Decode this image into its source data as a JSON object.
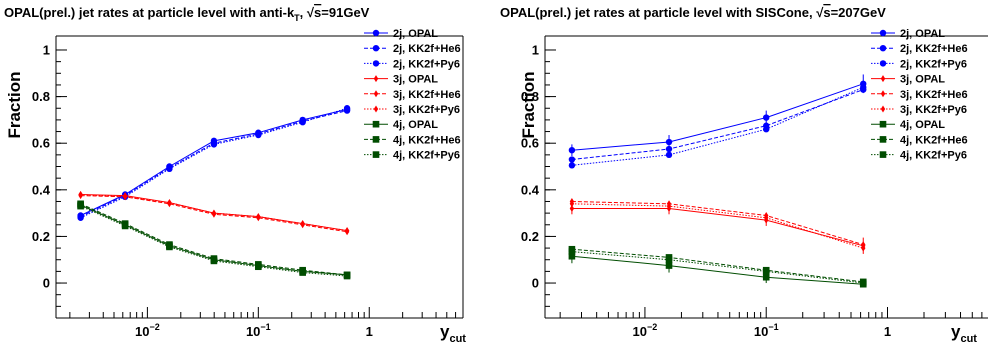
{
  "chart_data": [
    {
      "type": "line",
      "title": {
        "pre": "OPAL(prel.) jet rates at particle level with anti-k",
        "sub": "T",
        "mid": ", ",
        "sqrt": "s",
        "post": "=91GeV"
      },
      "xlabel": {
        "main": "y",
        "sub": "cut"
      },
      "ylabel": "Fraction",
      "xscale": "log",
      "xlim": [
        0.0015,
        7.0
      ],
      "ylim": [
        -0.15,
        1.06
      ],
      "yticks": [
        "0",
        "0.2",
        "0.4",
        "0.6",
        "0.8",
        "1"
      ],
      "xticks": [
        {
          "base": "10",
          "exp": "−2",
          "value": 0.01
        },
        {
          "base": "10",
          "exp": "−1",
          "value": 0.1
        },
        {
          "base": "1",
          "exp": "",
          "value": 1
        }
      ],
      "legend_position": "top-right",
      "series": [
        {
          "name": "2j, OPAL",
          "color": "#0000ff",
          "dash": "solid",
          "marker": "circle",
          "x": [
            0.0025,
            0.0063,
            0.0158,
            0.0398,
            0.1,
            0.251,
            0.631
          ],
          "y": [
            0.29,
            0.38,
            0.5,
            0.61,
            0.645,
            0.7,
            0.745
          ],
          "err": [
            0.008,
            0.008,
            0.008,
            0.008,
            0.008,
            0.008,
            0.008
          ]
        },
        {
          "name": "2j, KK2f+He6",
          "color": "#0000ff",
          "dash": "dashed",
          "marker": "circle",
          "x": [
            0.0025,
            0.0063,
            0.0158,
            0.0398,
            0.1,
            0.251,
            0.631
          ],
          "y": [
            0.285,
            0.375,
            0.495,
            0.6,
            0.64,
            0.695,
            0.74
          ]
        },
        {
          "name": "2j, KK2f+Py6",
          "color": "#0000ff",
          "dash": "dotted",
          "marker": "circle",
          "x": [
            0.0025,
            0.0063,
            0.0158,
            0.0398,
            0.1,
            0.251,
            0.631
          ],
          "y": [
            0.28,
            0.37,
            0.49,
            0.595,
            0.635,
            0.69,
            0.75
          ]
        },
        {
          "name": "3j, OPAL",
          "color": "#ff0000",
          "dash": "solid",
          "marker": "diamond",
          "x": [
            0.0025,
            0.0063,
            0.0158,
            0.0398,
            0.1,
            0.251,
            0.631
          ],
          "y": [
            0.38,
            0.375,
            0.345,
            0.3,
            0.285,
            0.255,
            0.225
          ],
          "err": [
            0.008,
            0.008,
            0.008,
            0.008,
            0.008,
            0.008,
            0.008
          ]
        },
        {
          "name": "3j, KK2f+He6",
          "color": "#ff0000",
          "dash": "dashed",
          "marker": "diamond",
          "x": [
            0.0025,
            0.0063,
            0.0158,
            0.0398,
            0.1,
            0.251,
            0.631
          ],
          "y": [
            0.375,
            0.37,
            0.34,
            0.295,
            0.28,
            0.25,
            0.22
          ]
        },
        {
          "name": "3j, KK2f+Py6",
          "color": "#ff0000",
          "dash": "dotted",
          "marker": "diamond",
          "x": [
            0.0025,
            0.0063,
            0.0158,
            0.0398,
            0.1,
            0.251,
            0.631
          ],
          "y": [
            0.38,
            0.37,
            0.345,
            0.3,
            0.285,
            0.255,
            0.225
          ]
        },
        {
          "name": "4j, OPAL",
          "color": "#004d00",
          "dash": "solid",
          "marker": "square",
          "x": [
            0.0025,
            0.0063,
            0.0158,
            0.0398,
            0.1,
            0.251,
            0.631
          ],
          "y": [
            0.335,
            0.25,
            0.16,
            0.1,
            0.075,
            0.05,
            0.035
          ],
          "err": [
            0.008,
            0.008,
            0.008,
            0.008,
            0.008,
            0.008,
            0.008
          ]
        },
        {
          "name": "4j, KK2f+He6",
          "color": "#004d00",
          "dash": "dashed",
          "marker": "square",
          "x": [
            0.0025,
            0.0063,
            0.0158,
            0.0398,
            0.1,
            0.251,
            0.631
          ],
          "y": [
            0.34,
            0.255,
            0.165,
            0.105,
            0.08,
            0.055,
            0.035
          ]
        },
        {
          "name": "4j, KK2f+Py6",
          "color": "#004d00",
          "dash": "dotted",
          "marker": "square",
          "x": [
            0.0025,
            0.0063,
            0.0158,
            0.0398,
            0.1,
            0.251,
            0.631
          ],
          "y": [
            0.33,
            0.245,
            0.155,
            0.095,
            0.07,
            0.045,
            0.03
          ]
        }
      ]
    },
    {
      "type": "line",
      "title": {
        "pre": "OPAL(prel.) jet rates at particle level with SISCone,  ",
        "sub": "",
        "mid": "",
        "sqrt": "s",
        "post": "=207GeV"
      },
      "xlabel": {
        "main": "y",
        "sub": "cut"
      },
      "ylabel": "Fraction",
      "xscale": "log",
      "xlim": [
        0.0015,
        7.0
      ],
      "ylim": [
        -0.15,
        1.06
      ],
      "yticks": [
        "0",
        "0.2",
        "0.4",
        "0.6",
        "0.8",
        "1"
      ],
      "xticks": [
        {
          "base": "10",
          "exp": "−2",
          "value": 0.01
        },
        {
          "base": "10",
          "exp": "−1",
          "value": 0.1
        },
        {
          "base": "1",
          "exp": "",
          "value": 1
        }
      ],
      "legend_position": "top-right",
      "series": [
        {
          "name": "2j, OPAL",
          "color": "#0000ff",
          "dash": "solid",
          "marker": "circle",
          "x": [
            0.0025,
            0.0158,
            0.1,
            0.631
          ],
          "y": [
            0.57,
            0.605,
            0.71,
            0.855
          ],
          "err": [
            0.025,
            0.03,
            0.03,
            0.04
          ]
        },
        {
          "name": "2j, KK2f+He6",
          "color": "#0000ff",
          "dash": "dashed",
          "marker": "circle",
          "x": [
            0.0025,
            0.0158,
            0.1,
            0.631
          ],
          "y": [
            0.53,
            0.575,
            0.675,
            0.83
          ]
        },
        {
          "name": "2j, KK2f+Py6",
          "color": "#0000ff",
          "dash": "dotted",
          "marker": "circle",
          "x": [
            0.0025,
            0.0158,
            0.1,
            0.631
          ],
          "y": [
            0.505,
            0.55,
            0.66,
            0.84
          ]
        },
        {
          "name": "3j, OPAL",
          "color": "#ff0000",
          "dash": "solid",
          "marker": "diamond",
          "x": [
            0.0025,
            0.0158,
            0.1,
            0.631
          ],
          "y": [
            0.32,
            0.32,
            0.27,
            0.16
          ],
          "err": [
            0.025,
            0.025,
            0.025,
            0.035
          ]
        },
        {
          "name": "3j, KK2f+He6",
          "color": "#ff0000",
          "dash": "dashed",
          "marker": "diamond",
          "x": [
            0.0025,
            0.0158,
            0.1,
            0.631
          ],
          "y": [
            0.35,
            0.34,
            0.29,
            0.165
          ]
        },
        {
          "name": "3j, KK2f+Py6",
          "color": "#ff0000",
          "dash": "dotted",
          "marker": "diamond",
          "x": [
            0.0025,
            0.0158,
            0.1,
            0.631
          ],
          "y": [
            0.34,
            0.33,
            0.28,
            0.15
          ]
        },
        {
          "name": "4j, OPAL",
          "color": "#004d00",
          "dash": "solid",
          "marker": "square",
          "x": [
            0.0025,
            0.0158,
            0.1,
            0.631
          ],
          "y": [
            0.115,
            0.075,
            0.025,
            -0.005
          ],
          "err": [
            0.03,
            0.03,
            0.025,
            0.01
          ]
        },
        {
          "name": "4j, KK2f+He6",
          "color": "#004d00",
          "dash": "dashed",
          "marker": "square",
          "x": [
            0.0025,
            0.0158,
            0.1,
            0.631
          ],
          "y": [
            0.145,
            0.11,
            0.055,
            0.005
          ]
        },
        {
          "name": "4j, KK2f+Py6",
          "color": "#004d00",
          "dash": "dotted",
          "marker": "square",
          "x": [
            0.0025,
            0.0158,
            0.1,
            0.631
          ],
          "y": [
            0.135,
            0.1,
            0.05,
            0.0
          ]
        }
      ]
    }
  ]
}
